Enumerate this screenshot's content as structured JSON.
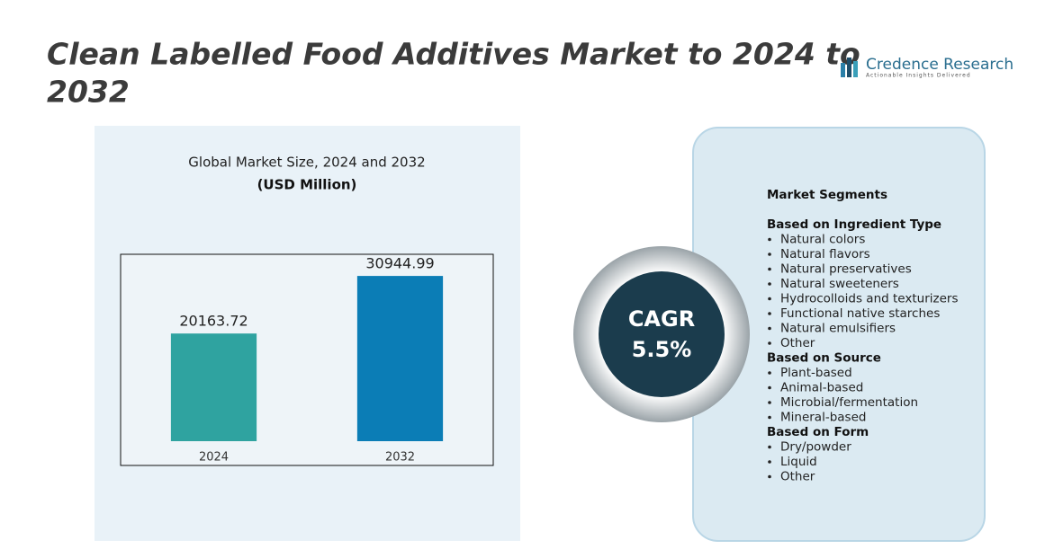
{
  "header": {
    "title": "Clean Labelled Food Additives Market to 2024 to 2032"
  },
  "logo": {
    "name": "Credence Research",
    "tagline": "Actionable Insights Delivered"
  },
  "chart_data": {
    "type": "bar",
    "title": "Global Market Size, 2024 and 2032",
    "subtitle": "(USD Million)",
    "categories": [
      "2024",
      "2032"
    ],
    "values": [
      20163.72,
      30944.99
    ],
    "colors": [
      "#2fa3a0",
      "#0b7db6"
    ],
    "ylim": [
      0,
      35000
    ]
  },
  "cagr": {
    "label": "CAGR",
    "value": "5.5%"
  },
  "segments": {
    "title": "Market Segments",
    "groups": [
      {
        "heading": "Based on Ingredient Type",
        "items": [
          "Natural colors",
          "Natural flavors",
          "Natural preservatives",
          "Natural sweeteners",
          "Hydrocolloids  and texturizers",
          "Functional native starches",
          "Natural emulsifiers",
          "Other"
        ]
      },
      {
        "heading": "Based on Source",
        "items": [
          "Plant-based",
          "Animal-based",
          "Microbial/fermentation",
          "Mineral-based"
        ]
      },
      {
        "heading": "Based on Form",
        "items": [
          "Dry/powder",
          "Liquid",
          "Other"
        ]
      }
    ]
  }
}
